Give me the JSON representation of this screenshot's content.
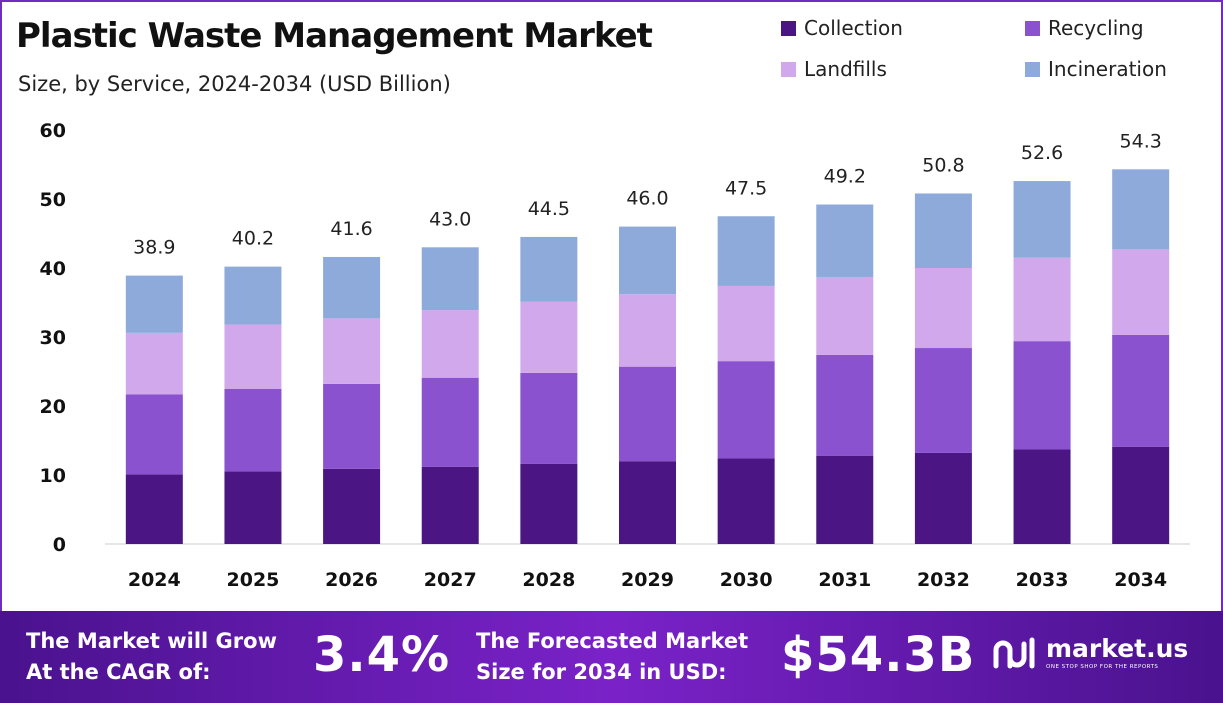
{
  "title": "Plastic Waste Management Market",
  "subtitle": "Size, by Service, 2024-2034 (USD Billion)",
  "colors": {
    "collection": "#4b1583",
    "recycling": "#8a52cf",
    "landfills": "#d2a8ec",
    "incineration": "#8eaadb",
    "axis": "#cccccc",
    "footer": "#6a1fb8"
  },
  "chart_data": {
    "type": "bar",
    "stacked": true,
    "categories": [
      "2024",
      "2025",
      "2026",
      "2027",
      "2028",
      "2029",
      "2030",
      "2031",
      "2032",
      "2033",
      "2034"
    ],
    "series": [
      {
        "name": "Collection",
        "values": [
          10.1,
          10.5,
          10.9,
          11.2,
          11.6,
          12.0,
          12.4,
          12.8,
          13.2,
          13.7,
          14.1
        ]
      },
      {
        "name": "Recycling",
        "values": [
          11.6,
          12.0,
          12.3,
          12.9,
          13.2,
          13.7,
          14.1,
          14.6,
          15.2,
          15.7,
          16.2
        ]
      },
      {
        "name": "Landfills",
        "values": [
          8.9,
          9.3,
          9.5,
          9.8,
          10.3,
          10.5,
          10.9,
          11.3,
          11.6,
          12.1,
          12.4
        ]
      },
      {
        "name": "Incineration",
        "values": [
          8.3,
          8.4,
          8.9,
          9.1,
          9.4,
          9.8,
          10.1,
          10.5,
          10.8,
          11.1,
          11.6
        ]
      }
    ],
    "totals": [
      "38.9",
      "40.2",
      "41.6",
      "43.0",
      "44.5",
      "46.0",
      "47.5",
      "49.2",
      "50.8",
      "52.6",
      "54.3"
    ],
    "yticks": [
      "0",
      "10",
      "20",
      "30",
      "40",
      "50",
      "60"
    ],
    "ylim": [
      0,
      60
    ],
    "legend_position": "top-right",
    "grid": false
  },
  "footer": {
    "cagr_label_line1": "The Market will Grow",
    "cagr_label_line2": "At the CAGR of:",
    "cagr_value": "3.4%",
    "forecast_label_line1": "The Forecasted Market",
    "forecast_label_line2": "Size for 2034 in USD:",
    "forecast_value": "$54.3B",
    "brand_name": "market.us",
    "brand_tagline": "ONE STOP SHOP FOR THE REPORTS",
    "brand_icon": "market-us-logo-icon"
  }
}
